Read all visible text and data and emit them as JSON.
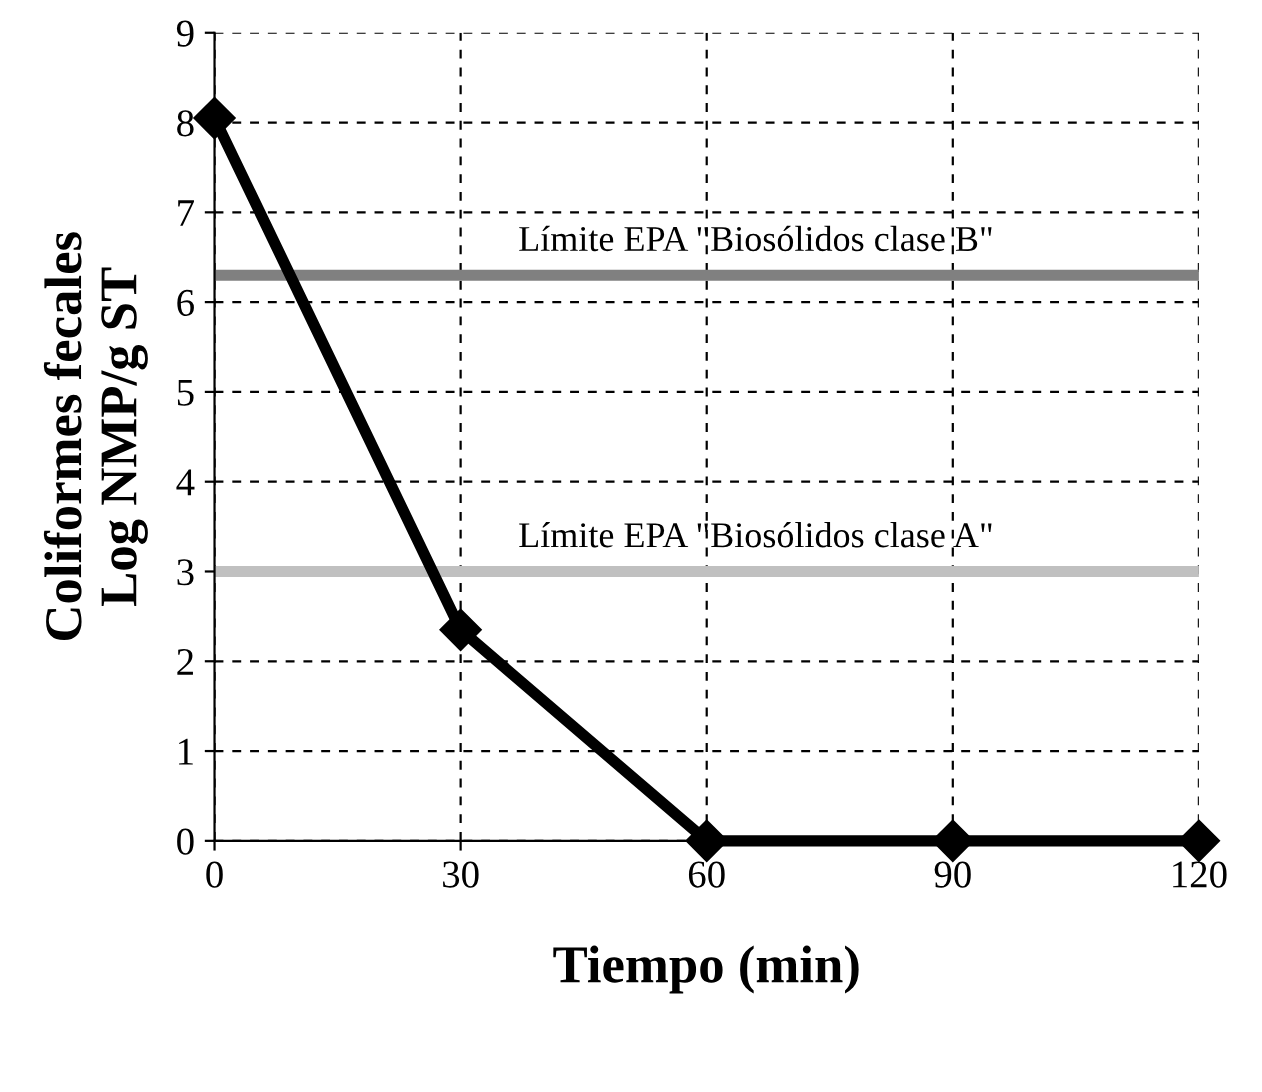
{
  "chart_data": {
    "type": "line",
    "xlabel": "Tiempo (min)",
    "ylabel": "Coliformes fecales\nLog NMP/g ST",
    "x": [
      0,
      30,
      60,
      90,
      120
    ],
    "series": [
      {
        "color": "#000000",
        "values": [
          8.05,
          2.35,
          0,
          0,
          0
        ]
      }
    ],
    "marker": "diamond",
    "line_style": "solid",
    "xlim": [
      0,
      120
    ],
    "xticks": [
      0,
      30,
      60,
      90,
      120
    ],
    "ylim": [
      0,
      9
    ],
    "yticks": [
      0,
      1,
      2,
      3,
      4,
      5,
      6,
      7,
      8,
      9
    ],
    "grid": true,
    "ref_lines": [
      {
        "axis": "y",
        "value": 6.3,
        "label": "Límite EPA \"Biosólidos clase B\"",
        "color": "#808080"
      },
      {
        "axis": "y",
        "value": 3,
        "label": "Límite EPA \"Biosólidos clase A\"",
        "color": "#c0c0c0"
      }
    ]
  }
}
